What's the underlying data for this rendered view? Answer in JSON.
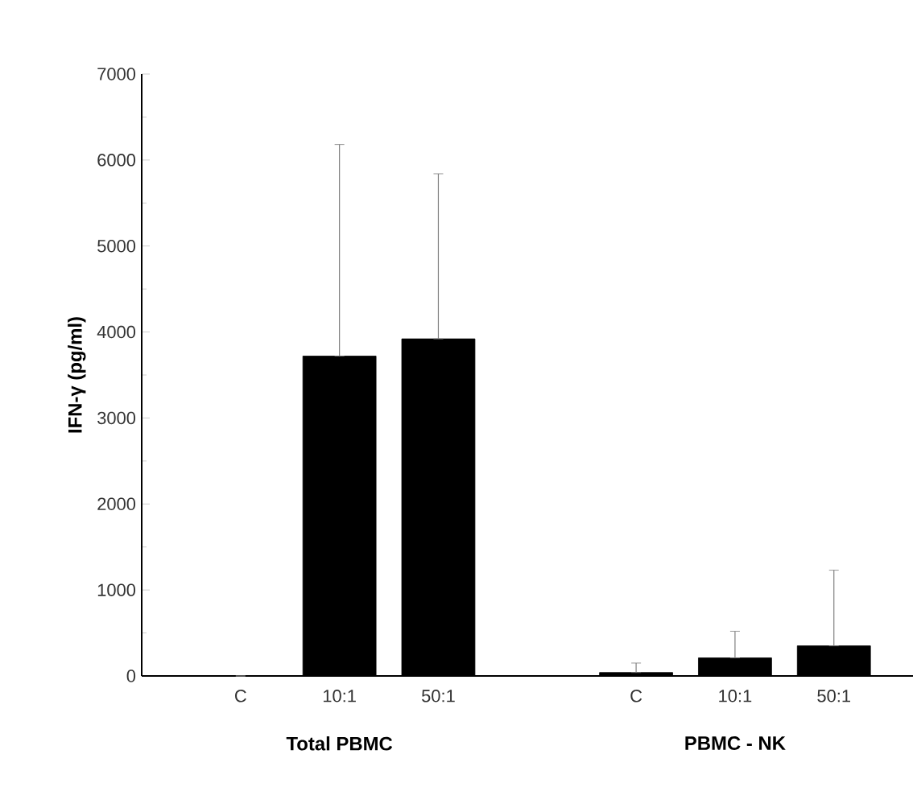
{
  "chart_data": {
    "type": "bar",
    "ylabel": "IFN-γ (pg/ml)",
    "categories": [
      "C",
      "10:1",
      "50:1",
      null,
      "C",
      "10:1",
      "50:1"
    ],
    "values": [
      0,
      3720,
      3920,
      null,
      40,
      210,
      350
    ],
    "errors": [
      null,
      [
        3720,
        6180
      ],
      [
        3920,
        5840
      ],
      null,
      [
        40,
        150
      ],
      [
        210,
        520
      ],
      [
        350,
        1230
      ]
    ],
    "color": "#000000",
    "ylim": [
      0,
      7000
    ],
    "yticks": [
      0,
      1000,
      2000,
      3000,
      4000,
      5000,
      6000,
      7000
    ],
    "annotations": [
      "Total PBMC",
      "PBMC - NK"
    ]
  }
}
